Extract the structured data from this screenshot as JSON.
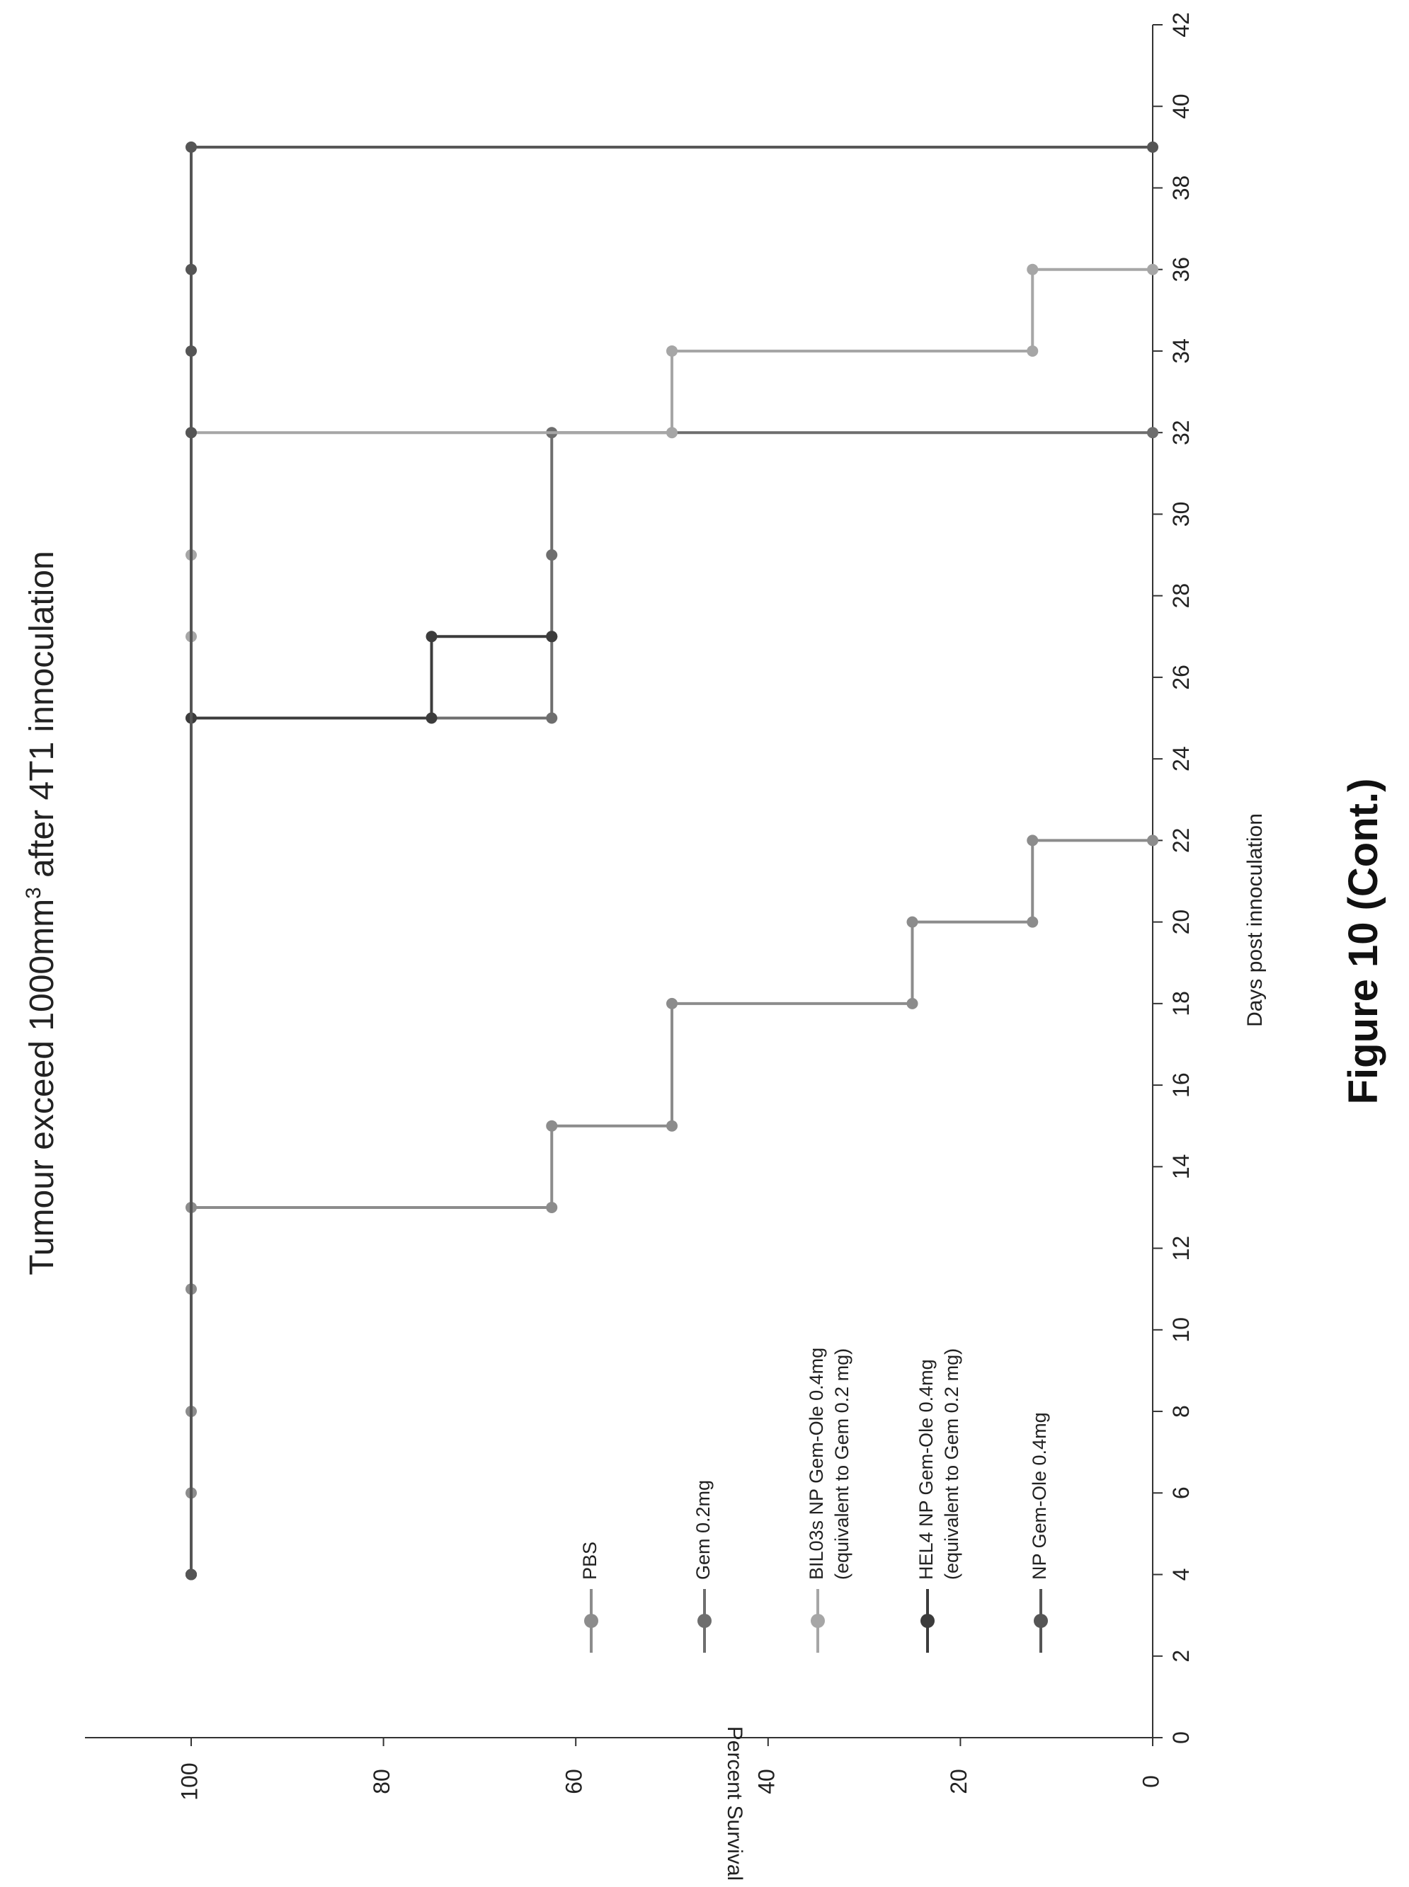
{
  "caption": "Figure 10 (Cont.)",
  "chart_data": {
    "type": "line",
    "title_prefix": "Tumour exceed 1000mm",
    "title_superscript": "3",
    "title_suffix": " after 4T1 innoculation",
    "xlabel": "Days post innoculation",
    "ylabel": "Percent Survival",
    "xlim": [
      0,
      42
    ],
    "ylim": [
      0,
      100
    ],
    "xticks": [
      0,
      2,
      4,
      6,
      8,
      10,
      12,
      14,
      16,
      18,
      20,
      22,
      24,
      26,
      28,
      30,
      32,
      34,
      36,
      38,
      40,
      42
    ],
    "yticks": [
      0,
      20,
      40,
      60,
      80,
      100
    ],
    "legend_position": "inside-bottom-left",
    "step": true,
    "series": [
      {
        "name": "PBS",
        "color": "#8c8c8c",
        "x": [
          4,
          6,
          8,
          11,
          13,
          13,
          15,
          15,
          18,
          18,
          20,
          20,
          22,
          22
        ],
        "y": [
          100,
          100,
          100,
          100,
          100,
          62.5,
          62.5,
          50,
          50,
          25,
          25,
          12.5,
          12.5,
          0
        ]
      },
      {
        "name": "Gem 0.2mg",
        "color": "#6e6e6e",
        "x": [
          4,
          25,
          25,
          27,
          27,
          29,
          32,
          32
        ],
        "y": [
          100,
          100,
          62.5,
          62.5,
          62.5,
          62.5,
          62.5,
          0
        ]
      },
      {
        "name": "BIL03s NP Gem-Ole 0.4mg\n(equivalent to Gem 0.2 mg)",
        "color": "#a6a6a6",
        "x": [
          4,
          27,
          29,
          32,
          32,
          34,
          34,
          36,
          36
        ],
        "y": [
          100,
          100,
          100,
          100,
          50,
          50,
          12.5,
          12.5,
          0
        ]
      },
      {
        "name": "HEL4 NP Gem-Ole 0.4mg\n(equivalent to Gem 0.2 mg)",
        "color": "#3c3c3c",
        "x": [
          4,
          25,
          25,
          27,
          27
        ],
        "y": [
          100,
          100,
          75,
          75,
          62.5
        ]
      },
      {
        "name": "NP Gem-Ole 0.4mg",
        "color": "#555555",
        "x": [
          4,
          32,
          34,
          36,
          39,
          39
        ],
        "y": [
          100,
          100,
          100,
          100,
          100,
          0
        ]
      }
    ]
  }
}
